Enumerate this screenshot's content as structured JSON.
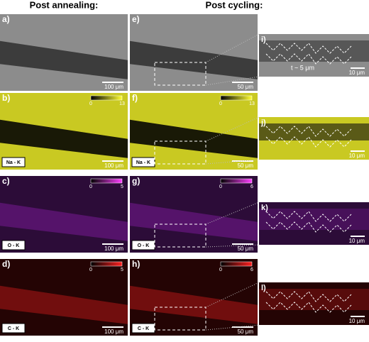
{
  "header": {
    "left": "Post annealing:",
    "right": "Post cycling:"
  },
  "panels": [
    {
      "label": "a)",
      "scale": "100 μm"
    },
    {
      "label": "b)",
      "scale": "100 μm",
      "element": "Na - K",
      "colorbar": [
        0,
        13
      ]
    },
    {
      "label": "c)",
      "scale": "100 μm",
      "element": "O - K",
      "colorbar": [
        0,
        5
      ]
    },
    {
      "label": "d)",
      "scale": "100 μm",
      "element": "C - K",
      "colorbar": [
        0,
        5
      ]
    },
    {
      "label": "e)",
      "scale": "50 μm"
    },
    {
      "label": "f)",
      "scale": "50 μm",
      "element": "Na - K",
      "colorbar": [
        0,
        13
      ]
    },
    {
      "label": "g)",
      "scale": "50 μm",
      "element": "O - K",
      "colorbar": [
        0,
        6
      ]
    },
    {
      "label": "h)",
      "scale": "50 μm",
      "element": "C - K",
      "colorbar": [
        0,
        6
      ]
    },
    {
      "label": "i)",
      "scale": "10 μm",
      "annotation": "t ~ 5 μm"
    },
    {
      "label": "j)",
      "scale": "10 μm"
    },
    {
      "label": "k)",
      "scale": "10 μm"
    },
    {
      "label": "l)",
      "scale": "10 μm"
    }
  ]
}
